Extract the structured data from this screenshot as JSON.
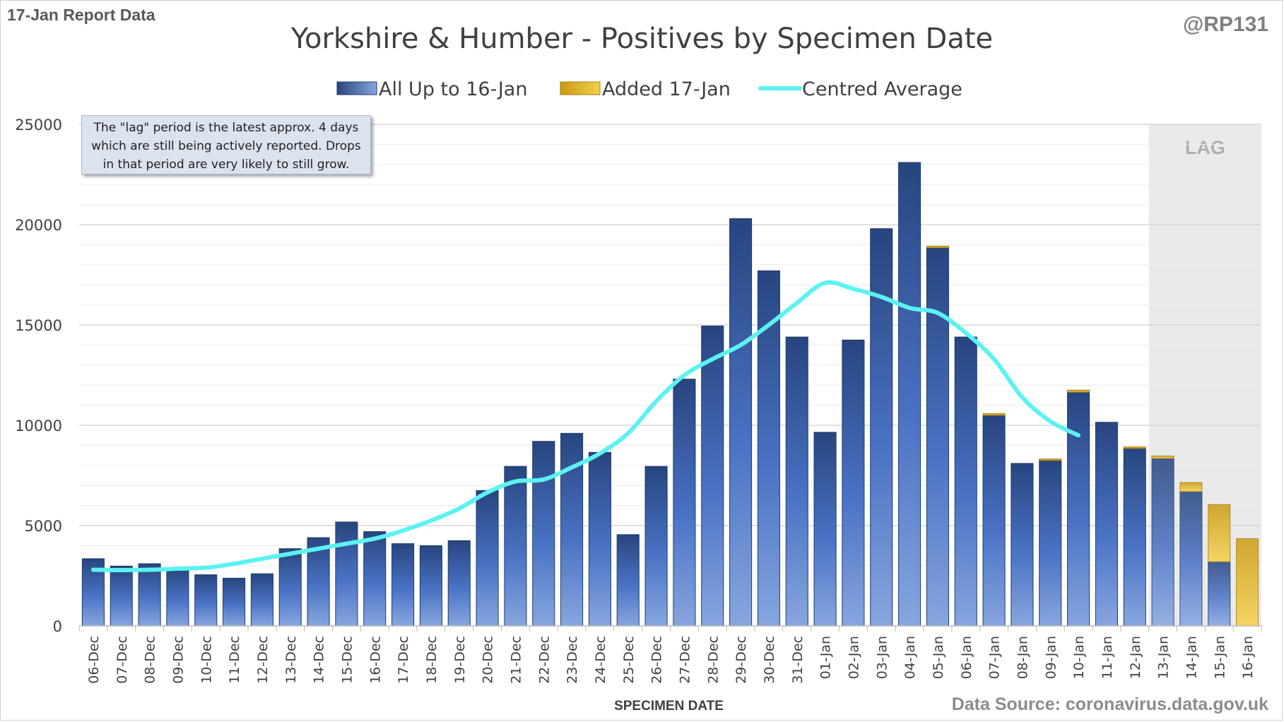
{
  "header": {
    "report_label": "17-Jan Report Data",
    "handle": "@RP131",
    "source": "Data Source: coronavirus.data.gov.uk"
  },
  "note": {
    "lines": [
      "The \"lag\" period is the latest approx. 4 days",
      "which are still being actively reported.  Drops",
      "in that period are very likely to still grow."
    ]
  },
  "colors": {
    "bar_blue_top": "#2a4a85",
    "bar_blue_bottom": "#7e9dd8",
    "added_gold": "#e6b820",
    "average_line": "#5cf2f2",
    "lag_shade": "#e8e8e8",
    "grid": "#d9d9d9"
  },
  "chart_data": {
    "type": "bar",
    "title": "Yorkshire & Humber - Positives by Specimen Date",
    "xlabel": "SPECIMEN DATE",
    "ylabel": "",
    "ylim": [
      0,
      25000
    ],
    "yticks": [
      0,
      5000,
      10000,
      15000,
      20000,
      25000
    ],
    "grid": true,
    "legend_position": "top",
    "lag_label": "LAG",
    "lag_categories": [
      "13-Jan",
      "14-Jan",
      "15-Jan",
      "16-Jan"
    ],
    "categories": [
      "06-Dec",
      "07-Dec",
      "08-Dec",
      "09-Dec",
      "10-Dec",
      "11-Dec",
      "12-Dec",
      "13-Dec",
      "14-Dec",
      "15-Dec",
      "16-Dec",
      "17-Dec",
      "18-Dec",
      "19-Dec",
      "20-Dec",
      "21-Dec",
      "22-Dec",
      "23-Dec",
      "24-Dec",
      "25-Dec",
      "26-Dec",
      "27-Dec",
      "28-Dec",
      "29-Dec",
      "30-Dec",
      "31-Dec",
      "01-Jan",
      "02-Jan",
      "03-Jan",
      "04-Jan",
      "05-Jan",
      "06-Jan",
      "07-Jan",
      "08-Jan",
      "09-Jan",
      "10-Jan",
      "11-Jan",
      "12-Jan",
      "13-Jan",
      "14-Jan",
      "15-Jan",
      "16-Jan"
    ],
    "series": [
      {
        "name": "All Up to 16-Jan",
        "stack": "a",
        "values": [
          3350,
          2980,
          3100,
          2850,
          2550,
          2380,
          2600,
          3850,
          4400,
          5180,
          4700,
          4100,
          4000,
          4250,
          6750,
          7950,
          9200,
          9600,
          8650,
          4550,
          7950,
          12300,
          14950,
          20300,
          17700,
          14400,
          9650,
          14250,
          19800,
          23100,
          18850,
          14400,
          10500,
          8100,
          8250,
          11650,
          10150,
          8850,
          8350,
          6700,
          3200,
          0
        ]
      },
      {
        "name": "Added 17-Jan",
        "stack": "a",
        "values": [
          0,
          0,
          0,
          0,
          0,
          0,
          0,
          0,
          0,
          0,
          0,
          0,
          0,
          0,
          0,
          0,
          0,
          0,
          0,
          0,
          0,
          0,
          0,
          0,
          0,
          0,
          0,
          0,
          0,
          0,
          80,
          0,
          80,
          0,
          70,
          100,
          0,
          70,
          120,
          450,
          2850,
          4350
        ]
      },
      {
        "name": "Centred Average",
        "type": "line",
        "values": [
          2800,
          2780,
          2800,
          2850,
          2900,
          3100,
          3350,
          3600,
          3850,
          4100,
          4350,
          4750,
          5250,
          5850,
          6650,
          7200,
          7300,
          7900,
          8600,
          9600,
          11200,
          12500,
          13300,
          14000,
          15000,
          16100,
          17100,
          16800,
          16400,
          15850,
          15600,
          14600,
          13300,
          11400,
          10200,
          9500,
          null,
          null,
          null,
          null,
          null,
          null
        ]
      }
    ]
  }
}
